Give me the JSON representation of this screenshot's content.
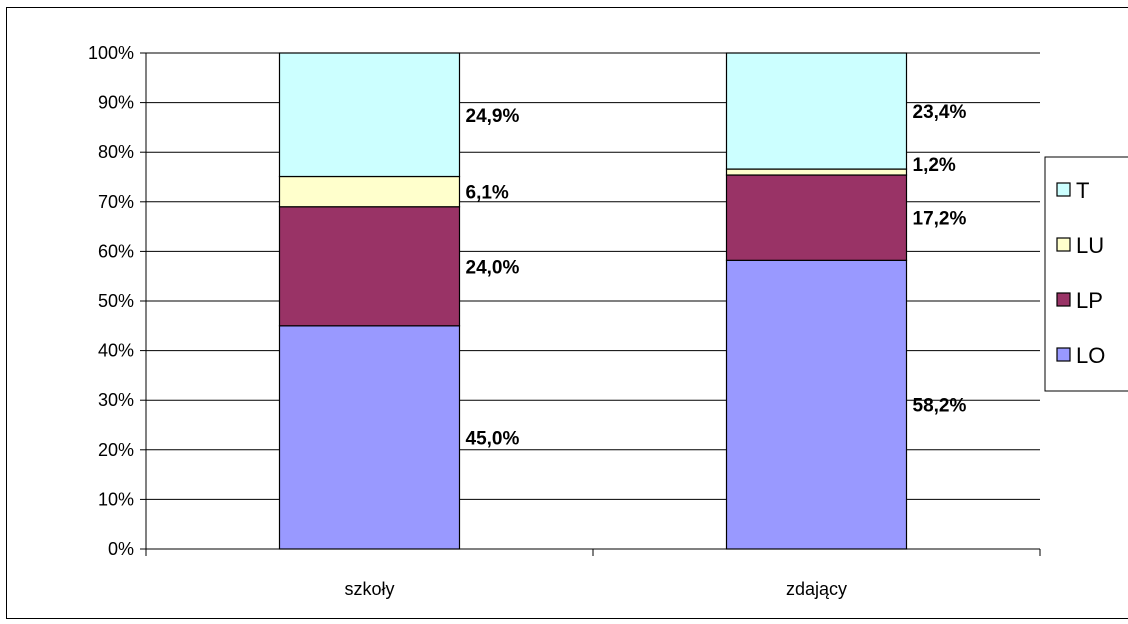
{
  "chart_data": {
    "type": "bar",
    "stacked": true,
    "percent": true,
    "categories": [
      "szkoły",
      "zdający"
    ],
    "series": [
      {
        "name": "LO",
        "values": [
          45.0,
          58.2
        ],
        "labels": [
          "45,0%",
          "58,2%"
        ],
        "color": "#9999FF"
      },
      {
        "name": "LP",
        "values": [
          24.0,
          17.2
        ],
        "labels": [
          "24,0%",
          "17,2%"
        ],
        "color": "#993366"
      },
      {
        "name": "LU",
        "values": [
          6.1,
          1.2
        ],
        "labels": [
          "6,1%",
          "1,2%"
        ],
        "color": "#FFFFCC"
      },
      {
        "name": "T",
        "values": [
          24.9,
          23.4
        ],
        "labels": [
          "24,9%",
          "23,4%"
        ],
        "color": "#CCFFFF"
      }
    ],
    "y_ticks": [
      "0%",
      "10%",
      "20%",
      "30%",
      "40%",
      "50%",
      "60%",
      "70%",
      "80%",
      "90%",
      "100%"
    ],
    "ylim": [
      0,
      100
    ],
    "grid": true,
    "legend": {
      "position": "right",
      "entries": [
        "T",
        "LU",
        "LP",
        "LO"
      ]
    },
    "title": "",
    "xlabel": "",
    "ylabel": ""
  }
}
